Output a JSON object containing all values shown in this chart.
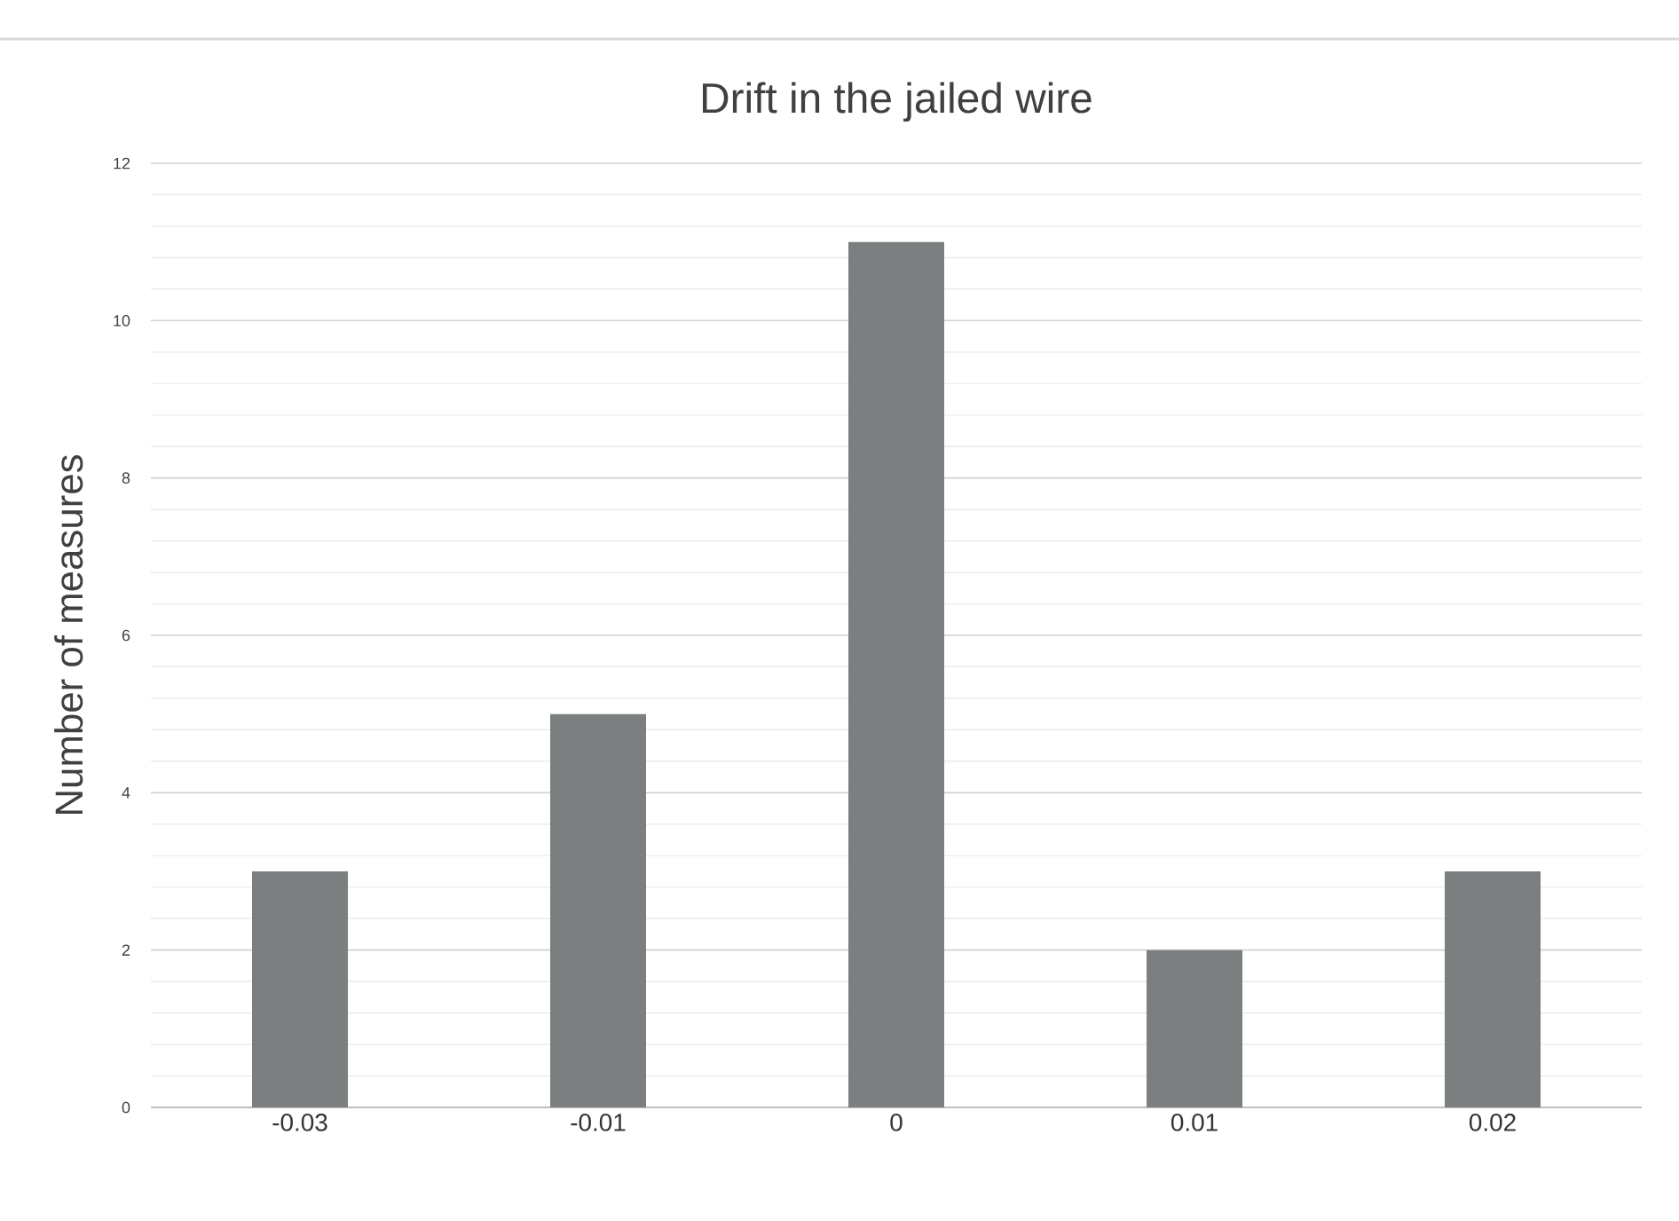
{
  "chart_data": {
    "type": "bar",
    "title": "Drift in the jailed wire",
    "ylabel": "Number of measures",
    "categories": [
      "-0.03",
      "-0.01",
      "0",
      "0.01",
      "0.02"
    ],
    "values": [
      3,
      5,
      11,
      2,
      3
    ],
    "color": "#7b7f80",
    "ylim": [
      0,
      12
    ],
    "yticks": [
      0,
      2,
      4,
      6,
      8,
      10,
      12
    ],
    "grid": "y"
  }
}
